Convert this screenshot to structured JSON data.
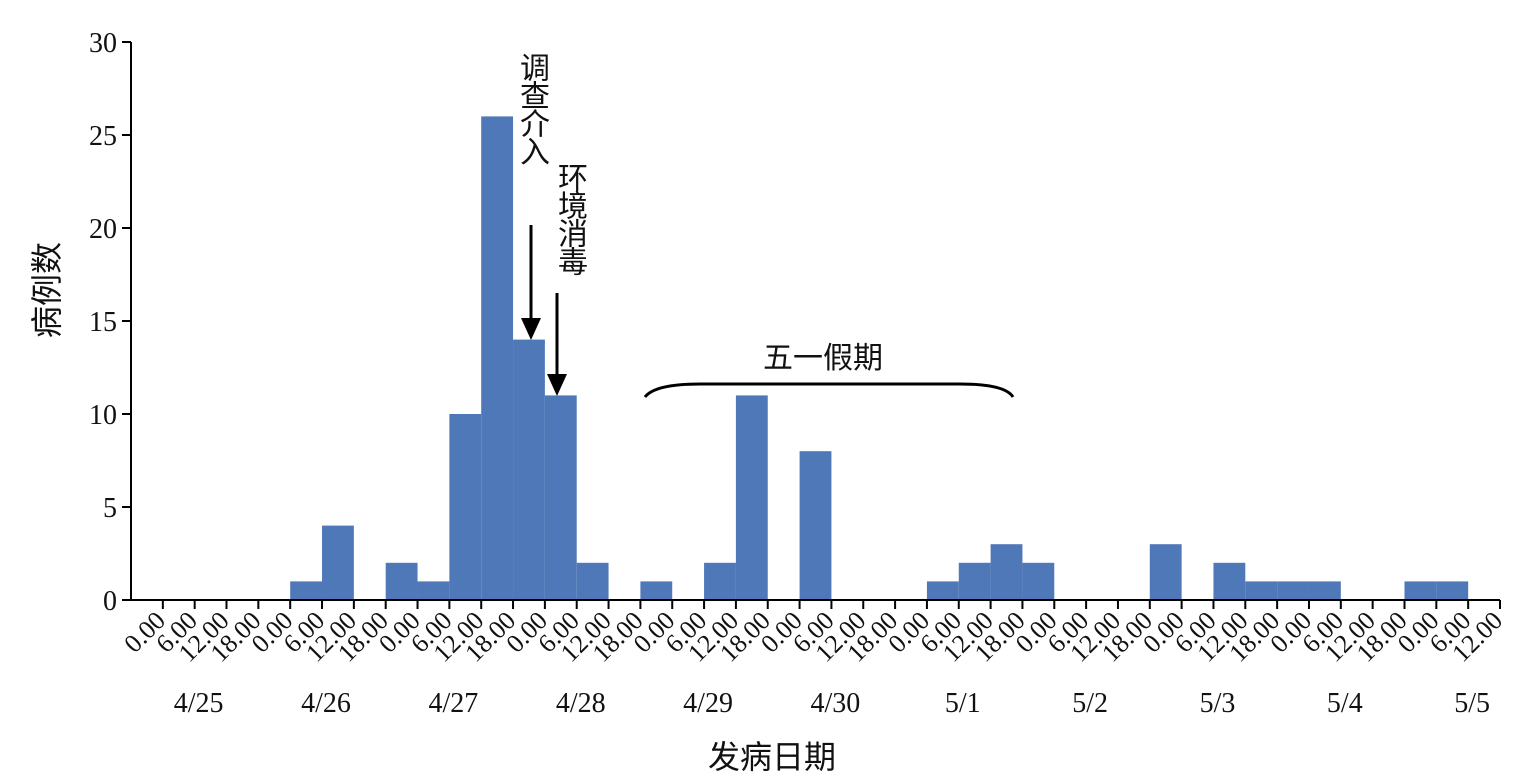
{
  "chart_data": {
    "type": "histogram",
    "xlabel": "发病日期",
    "ylabel": "病例数",
    "bins": [
      0,
      6,
      12,
      18,
      24,
      30,
      36,
      42,
      48,
      54,
      60,
      66,
      72,
      78,
      84,
      90,
      96,
      102,
      108,
      114,
      120,
      126,
      132,
      138,
      144,
      150,
      156,
      162,
      168,
      174,
      180,
      186,
      192,
      198,
      204,
      210,
      216,
      222,
      228,
      234,
      240,
      246,
      252
    ],
    "values": [
      0,
      0,
      0,
      0,
      1,
      4,
      0,
      2,
      1,
      10,
      26,
      14,
      11,
      2,
      0,
      1,
      0,
      2,
      11,
      0,
      8,
      0,
      0,
      0,
      1,
      2,
      3,
      2,
      0,
      0,
      0,
      3,
      0,
      2,
      1,
      1,
      1,
      0,
      0,
      1,
      1,
      0
    ],
    "color": "#4f78b8",
    "xlim": [
      -6,
      252
    ],
    "xticks": [
      {
        "value": 0,
        "label": "0.00"
      },
      {
        "value": 6,
        "label": "6.00"
      },
      {
        "value": 12,
        "label": "12.00"
      },
      {
        "value": 18,
        "label": "18.00"
      },
      {
        "value": 24,
        "label": "0.00"
      },
      {
        "value": 30,
        "label": "6.00"
      },
      {
        "value": 36,
        "label": "12.00"
      },
      {
        "value": 42,
        "label": "18.00"
      },
      {
        "value": 48,
        "label": "0.00"
      },
      {
        "value": 54,
        "label": "6.00"
      },
      {
        "value": 60,
        "label": "12.00"
      },
      {
        "value": 66,
        "label": "18.00"
      },
      {
        "value": 72,
        "label": "0.00"
      },
      {
        "value": 78,
        "label": "6.00"
      },
      {
        "value": 84,
        "label": "12.00"
      },
      {
        "value": 90,
        "label": "18.00"
      },
      {
        "value": 96,
        "label": "0.00"
      },
      {
        "value": 102,
        "label": "6.00"
      },
      {
        "value": 108,
        "label": "12.00"
      },
      {
        "value": 114,
        "label": "18.00"
      },
      {
        "value": 120,
        "label": "0.00"
      },
      {
        "value": 126,
        "label": "6.00"
      },
      {
        "value": 132,
        "label": "12.00"
      },
      {
        "value": 138,
        "label": "18.00"
      },
      {
        "value": 144,
        "label": "0.00"
      },
      {
        "value": 150,
        "label": "6.00"
      },
      {
        "value": 156,
        "label": "12.00"
      },
      {
        "value": 162,
        "label": "18.00"
      },
      {
        "value": 168,
        "label": "0.00"
      },
      {
        "value": 174,
        "label": "6.00"
      },
      {
        "value": 180,
        "label": "12.00"
      },
      {
        "value": 186,
        "label": "18.00"
      },
      {
        "value": 192,
        "label": "0.00"
      },
      {
        "value": 198,
        "label": "6.00"
      },
      {
        "value": 204,
        "label": "12.00"
      },
      {
        "value": 210,
        "label": "18.00"
      },
      {
        "value": 216,
        "label": "0.00"
      },
      {
        "value": 222,
        "label": "6.00"
      },
      {
        "value": 228,
        "label": "12.00"
      },
      {
        "value": 234,
        "label": "18.00"
      },
      {
        "value": 240,
        "label": "0.00"
      },
      {
        "value": 246,
        "label": "6.00"
      },
      {
        "value": 252,
        "label": "12.00"
      }
    ],
    "date_labels": [
      {
        "value": 6,
        "label": "4/25"
      },
      {
        "value": 30,
        "label": "4/26"
      },
      {
        "value": 54,
        "label": "4/27"
      },
      {
        "value": 78,
        "label": "4/28"
      },
      {
        "value": 102,
        "label": "4/29"
      },
      {
        "value": 126,
        "label": "4/30"
      },
      {
        "value": 150,
        "label": "5/1"
      },
      {
        "value": 174,
        "label": "5/2"
      },
      {
        "value": 198,
        "label": "5/3"
      },
      {
        "value": 222,
        "label": "5/4"
      },
      {
        "value": 246,
        "label": "5/5"
      }
    ],
    "ylim": [
      0,
      30
    ],
    "yticks": [
      0,
      5,
      10,
      15,
      20,
      25,
      30
    ],
    "annotations": [
      "调查介入",
      "环境消毒",
      "五一假期"
    ]
  }
}
